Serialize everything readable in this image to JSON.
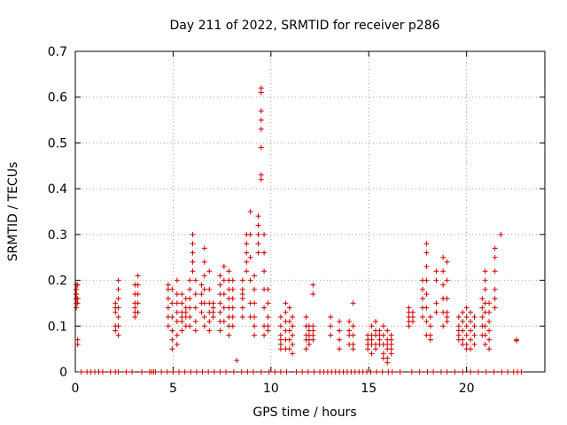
{
  "chart_data": {
    "type": "scatter",
    "title": "Day 211 of 2022, SRMTID for receiver p286",
    "xlabel": "GPS time / hours",
    "ylabel": "SRMTID / TECUs",
    "xlim": [
      0,
      24
    ],
    "ylim": [
      0,
      0.7
    ],
    "xticks": [
      0,
      5,
      10,
      15,
      20
    ],
    "xtick_labels": [
      "0",
      "5",
      "10",
      "15",
      "20"
    ],
    "yticks": [
      0,
      0.1,
      0.2,
      0.3,
      0.4,
      0.5,
      0.6,
      0.7
    ],
    "ytick_labels": [
      "0",
      "0.1",
      "0.2",
      "0.3",
      "0.4",
      "0.5",
      "0.6",
      "0.7"
    ],
    "grid": true,
    "marker": "+",
    "color": "#cc0000",
    "clusters": [
      {
        "x": 0.05,
        "y": [
          0.19,
          0.18,
          0.17,
          0.16,
          0.15,
          0.17,
          0.14,
          0.16,
          0.18
        ]
      },
      {
        "x": 0.12,
        "y": [
          0.07,
          0.06,
          0.16,
          0.15,
          0.19
        ]
      },
      {
        "x": 2.05,
        "y": [
          0.09,
          0.1,
          0.14,
          0.15,
          0.13
        ]
      },
      {
        "x": 2.2,
        "y": [
          0.2,
          0.18,
          0.16,
          0.14,
          0.12,
          0.1,
          0.08
        ]
      },
      {
        "x": 3.05,
        "y": [
          0.13,
          0.15,
          0.17,
          0.19,
          0.14,
          0.12
        ]
      },
      {
        "x": 3.2,
        "y": [
          0.21,
          0.19,
          0.17,
          0.15,
          0.13
        ]
      },
      {
        "x": 4.75,
        "y": [
          0.19,
          0.18,
          0.16,
          0.14,
          0.12,
          0.1
        ]
      },
      {
        "x": 4.95,
        "y": [
          0.18,
          0.15,
          0.12,
          0.09,
          0.07,
          0.05
        ]
      },
      {
        "x": 5.2,
        "y": [
          0.2,
          0.17,
          0.15,
          0.13,
          0.11,
          0.08,
          0.06
        ]
      },
      {
        "x": 5.45,
        "y": [
          0.17,
          0.15,
          0.13,
          0.11,
          0.09,
          0.12
        ]
      },
      {
        "x": 5.65,
        "y": [
          0.16,
          0.14,
          0.12,
          0.1,
          0.13
        ]
      },
      {
        "x": 5.85,
        "y": [
          0.2,
          0.18,
          0.16,
          0.14,
          0.1,
          0.12
        ]
      },
      {
        "x": 6.0,
        "y": [
          0.3,
          0.28,
          0.26,
          0.24,
          0.22
        ]
      },
      {
        "x": 6.15,
        "y": [
          0.2,
          0.17,
          0.14,
          0.11,
          0.09
        ]
      },
      {
        "x": 6.45,
        "y": [
          0.19,
          0.17,
          0.15,
          0.13
        ]
      },
      {
        "x": 6.6,
        "y": [
          0.27,
          0.24,
          0.21,
          0.18,
          0.15,
          0.12,
          0.1
        ]
      },
      {
        "x": 6.85,
        "y": [
          0.22,
          0.18,
          0.15,
          0.13,
          0.11,
          0.09
        ]
      },
      {
        "x": 7.05,
        "y": [
          0.12,
          0.13,
          0.14,
          0.15
        ]
      },
      {
        "x": 7.4,
        "y": [
          0.21,
          0.19,
          0.17,
          0.15,
          0.13,
          0.11,
          0.09
        ]
      },
      {
        "x": 7.6,
        "y": [
          0.23,
          0.2,
          0.17,
          0.14,
          0.11
        ]
      },
      {
        "x": 7.85,
        "y": [
          0.22,
          0.2,
          0.18,
          0.16,
          0.14,
          0.12,
          0.1,
          0.08
        ]
      },
      {
        "x": 8.05,
        "y": [
          0.2,
          0.18,
          0.16,
          0.14,
          0.12,
          0.1
        ]
      },
      {
        "x": 8.25,
        "y": [
          0.025
        ]
      },
      {
        "x": 8.55,
        "y": [
          0.2,
          0.18,
          0.16,
          0.14,
          0.12,
          0.17
        ]
      },
      {
        "x": 8.75,
        "y": [
          0.3,
          0.28,
          0.26,
          0.24,
          0.22
        ]
      },
      {
        "x": 8.95,
        "y": [
          0.35,
          0.3,
          0.25,
          0.2,
          0.15,
          0.12
        ]
      },
      {
        "x": 9.15,
        "y": [
          0.21,
          0.18,
          0.15,
          0.12,
          0.1,
          0.08
        ]
      },
      {
        "x": 9.35,
        "y": [
          0.34,
          0.32,
          0.3,
          0.28,
          0.26
        ]
      },
      {
        "x": 9.5,
        "y": [
          0.62,
          0.61,
          0.57,
          0.55,
          0.53,
          0.49,
          0.43,
          0.42
        ]
      },
      {
        "x": 9.65,
        "y": [
          0.3,
          0.26,
          0.22,
          0.18,
          0.14,
          0.1,
          0.08
        ]
      },
      {
        "x": 9.85,
        "y": [
          0.18,
          0.15,
          0.12,
          0.1,
          0.09
        ]
      },
      {
        "x": 10.5,
        "y": [
          0.12,
          0.1,
          0.08,
          0.07,
          0.06,
          0.05
        ]
      },
      {
        "x": 10.75,
        "y": [
          0.15,
          0.13,
          0.11,
          0.09,
          0.07,
          0.05
        ]
      },
      {
        "x": 10.95,
        "y": [
          0.14,
          0.11,
          0.09,
          0.07,
          0.05
        ]
      },
      {
        "x": 11.1,
        "y": [
          0.12,
          0.1,
          0.08,
          0.06,
          0.04
        ]
      },
      {
        "x": 11.8,
        "y": [
          0.12,
          0.1,
          0.08,
          0.07,
          0.05
        ]
      },
      {
        "x": 11.95,
        "y": [
          0.1,
          0.09,
          0.08,
          0.07,
          0.06
        ]
      },
      {
        "x": 12.15,
        "y": [
          0.19,
          0.17,
          0.1,
          0.09,
          0.08,
          0.07
        ]
      },
      {
        "x": 13.05,
        "y": [
          0.12,
          0.1,
          0.08
        ]
      },
      {
        "x": 13.5,
        "y": [
          0.11,
          0.09,
          0.07,
          0.05
        ]
      },
      {
        "x": 14.0,
        "y": [
          0.11,
          0.09,
          0.08,
          0.06
        ]
      },
      {
        "x": 14.2,
        "y": [
          0.15,
          0.1,
          0.08,
          0.06,
          0.05
        ]
      },
      {
        "x": 14.95,
        "y": [
          0.08,
          0.07,
          0.06,
          0.05
        ]
      },
      {
        "x": 15.15,
        "y": [
          0.1,
          0.08,
          0.07,
          0.06,
          0.04
        ]
      },
      {
        "x": 15.35,
        "y": [
          0.11,
          0.09,
          0.08,
          0.06,
          0.05
        ]
      },
      {
        "x": 15.55,
        "y": [
          0.09,
          0.08,
          0.07,
          0.06
        ]
      },
      {
        "x": 15.75,
        "y": [
          0.1,
          0.08,
          0.06,
          0.04,
          0.03
        ]
      },
      {
        "x": 15.95,
        "y": [
          0.09,
          0.07,
          0.06,
          0.05,
          0.03,
          0.02
        ]
      },
      {
        "x": 16.15,
        "y": [
          0.08,
          0.07,
          0.06,
          0.05,
          0.04
        ]
      },
      {
        "x": 17.05,
        "y": [
          0.14,
          0.13,
          0.12,
          0.11,
          0.1
        ]
      },
      {
        "x": 17.25,
        "y": [
          0.13,
          0.12,
          0.11
        ]
      },
      {
        "x": 17.75,
        "y": [
          0.2,
          0.18,
          0.16,
          0.14,
          0.12
        ]
      },
      {
        "x": 17.95,
        "y": [
          0.28,
          0.26,
          0.23,
          0.2,
          0.17,
          0.14,
          0.11,
          0.08
        ]
      },
      {
        "x": 18.15,
        "y": [
          0.12,
          0.1,
          0.08,
          0.07
        ]
      },
      {
        "x": 18.45,
        "y": [
          0.22,
          0.2,
          0.15,
          0.13
        ]
      },
      {
        "x": 18.8,
        "y": [
          0.25,
          0.22,
          0.19,
          0.16,
          0.13,
          0.1
        ]
      },
      {
        "x": 19.0,
        "y": [
          0.24,
          0.2,
          0.16,
          0.13,
          0.12,
          0.11
        ]
      },
      {
        "x": 19.6,
        "y": [
          0.12,
          0.1,
          0.09,
          0.08,
          0.07
        ]
      },
      {
        "x": 19.8,
        "y": [
          0.13,
          0.11,
          0.09,
          0.07,
          0.06
        ]
      },
      {
        "x": 20.0,
        "y": [
          0.14,
          0.12,
          0.1,
          0.08,
          0.06,
          0.05
        ]
      },
      {
        "x": 20.2,
        "y": [
          0.13,
          0.11,
          0.09,
          0.07,
          0.05
        ]
      },
      {
        "x": 20.4,
        "y": [
          0.12,
          0.1,
          0.08,
          0.06
        ]
      },
      {
        "x": 20.8,
        "y": [
          0.16,
          0.14,
          0.12,
          0.1,
          0.08
        ]
      },
      {
        "x": 20.95,
        "y": [
          0.22,
          0.2,
          0.18,
          0.15,
          0.13,
          0.1,
          0.08,
          0.06
        ]
      },
      {
        "x": 21.15,
        "y": [
          0.15,
          0.13,
          0.11,
          0.09,
          0.07,
          0.05
        ]
      },
      {
        "x": 21.45,
        "y": [
          0.27,
          0.25,
          0.22,
          0.18,
          0.16,
          0.14
        ]
      },
      {
        "x": 21.75,
        "y": [
          0.3
        ]
      },
      {
        "x": 22.55,
        "y": [
          0.07,
          0.068
        ]
      }
    ],
    "baseline": {
      "y": 0,
      "x": [
        0.3,
        0.6,
        0.8,
        1.0,
        1.2,
        1.4,
        1.8,
        2.05,
        2.2,
        2.6,
        2.9,
        3.4,
        3.8,
        3.9,
        4.0,
        4.1,
        4.4,
        4.7,
        5.0,
        5.3,
        5.6,
        5.9,
        6.2,
        6.5,
        6.8,
        7.1,
        7.4,
        7.7,
        8.1,
        8.5,
        8.8,
        9.1,
        9.5,
        9.9,
        10.2,
        10.5,
        10.8,
        11.3,
        11.6,
        11.9,
        12.2,
        12.5,
        12.7,
        12.9,
        13.1,
        13.3,
        13.5,
        13.7,
        13.9,
        14.1,
        14.3,
        14.5,
        14.7,
        14.9,
        15.1,
        15.4,
        15.7,
        16.0,
        16.2,
        16.6,
        17.2,
        17.6,
        18.0,
        18.3,
        18.7,
        19.0,
        19.4,
        19.8,
        20.2,
        20.6,
        21.0,
        21.4,
        21.8,
        22.1,
        22.4,
        22.6,
        22.8
      ]
    }
  }
}
